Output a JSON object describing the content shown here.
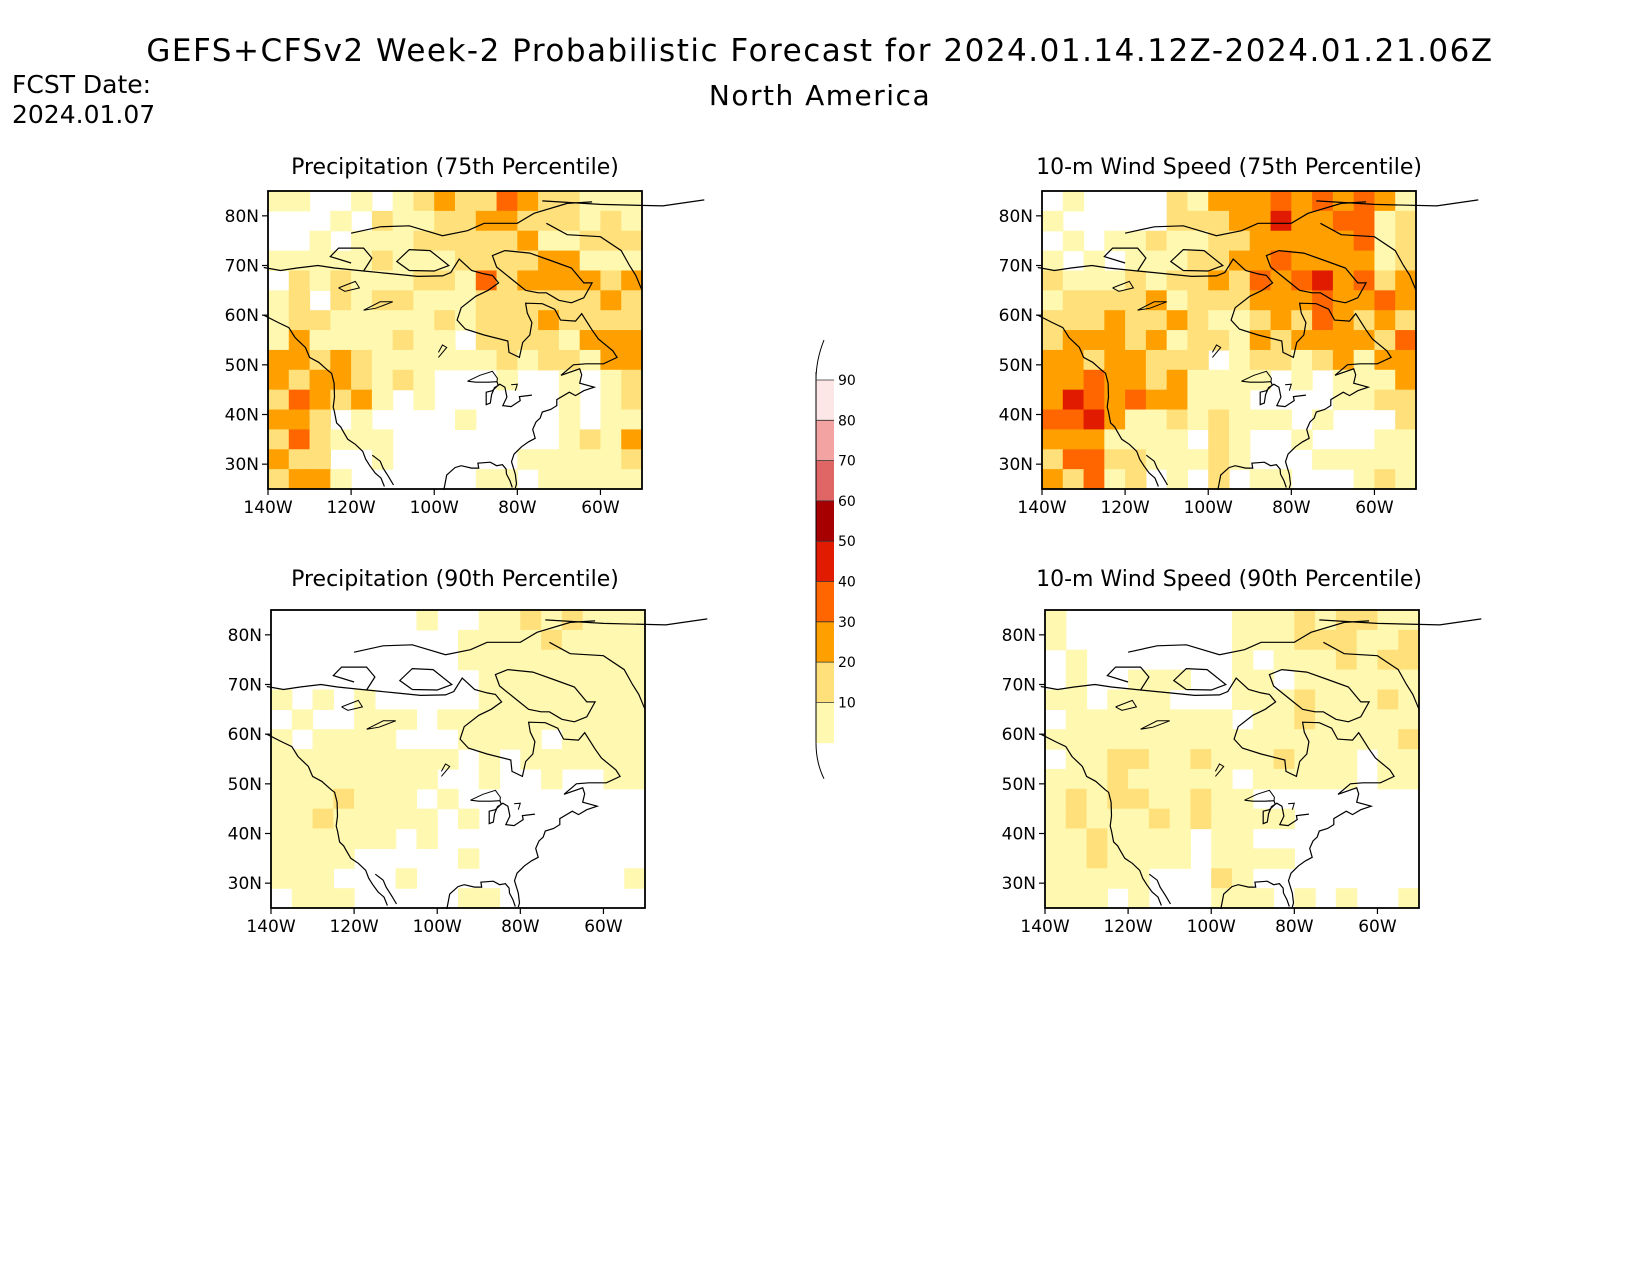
{
  "header": {
    "title": "GEFS+CFSv2 Week-2 Probabilistic Forecast for 2024.01.14.12Z-2024.01.21.06Z",
    "subtitle": "North America",
    "fcst_label": "FCST Date:",
    "fcst_date": "2024.01.07",
    "fcst_color": "#ff2a2a"
  },
  "maps": [
    {
      "id": "precip-75",
      "title": "Precipitation (75th Percentile)",
      "intensity": 0.75
    },
    {
      "id": "wind-75",
      "title": "10-m Wind Speed (75th Percentile)",
      "intensity": 1.0
    },
    {
      "id": "precip-90",
      "title": "Precipitation (90th Percentile)",
      "intensity": 0.35
    },
    {
      "id": "wind-90",
      "title": "10-m Wind Speed (90th Percentile)",
      "intensity": 0.45
    }
  ],
  "axes": {
    "lat_ticks": [
      "80N",
      "70N",
      "60N",
      "50N",
      "40N",
      "30N"
    ],
    "lon_ticks": [
      "140W",
      "120W",
      "100W",
      "80W",
      "60W"
    ],
    "lat_values": [
      80,
      70,
      60,
      50,
      40,
      30
    ],
    "lon_values": [
      -140,
      -120,
      -100,
      -80,
      -60
    ],
    "lat_range": [
      25,
      85
    ],
    "lon_range": [
      -140,
      -50
    ]
  },
  "colorbar": {
    "levels": [
      "90",
      "80",
      "70",
      "60",
      "50",
      "40",
      "30",
      "20",
      "10"
    ],
    "colors": [
      "#fde6e6",
      "#f4a3a3",
      "#e06666",
      "#a60000",
      "#e01b00",
      "#ff6600",
      "#ffa000",
      "#ffe07a",
      "#fff8b0"
    ]
  }
}
